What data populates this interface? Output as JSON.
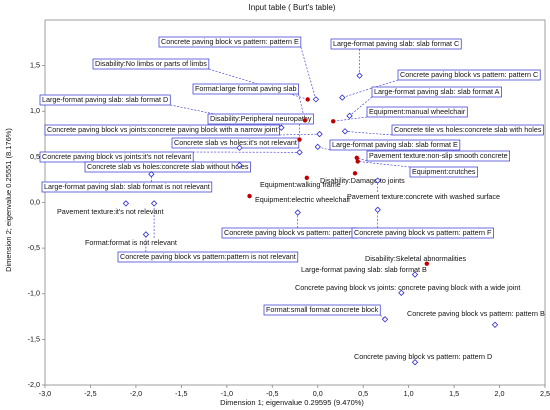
{
  "chart_data": {
    "type": "scatter",
    "title": "Input table ( Burt's table)",
    "x_label": "Dimension 1; eigenvalue 0.29595 (9.470%)",
    "y_label": "Dimension 2; eigenvalue 0.25551 (8.176%)",
    "xlim": [
      -3.0,
      2.5
    ],
    "ylim": [
      -2.0,
      2.0
    ],
    "xticks": [
      {
        "value": -3.0,
        "label": "-3,0"
      },
      {
        "value": -2.5,
        "label": "-2,5"
      },
      {
        "value": -2.0,
        "label": "-2,0"
      },
      {
        "value": -1.5,
        "label": "-1,5"
      },
      {
        "value": -1.0,
        "label": "-1,0"
      },
      {
        "value": -0.5,
        "label": "-0,5"
      },
      {
        "value": 0.0,
        "label": "0,0"
      },
      {
        "value": 0.5,
        "label": "0,5"
      },
      {
        "value": 1.0,
        "label": "1,0"
      },
      {
        "value": 1.5,
        "label": "1,5"
      },
      {
        "value": 2.0,
        "label": "2,0"
      },
      {
        "value": 2.5,
        "label": "2,5"
      }
    ],
    "yticks": [
      {
        "value": -2.0,
        "label": "-2,0"
      },
      {
        "value": -1.5,
        "label": "-1,5"
      },
      {
        "value": -1.0,
        "label": "-1,0"
      },
      {
        "value": -0.5,
        "label": "-0,5"
      },
      {
        "value": 0.0,
        "label": "0,0"
      },
      {
        "value": 0.5,
        "label": "0,5"
      },
      {
        "value": 1.0,
        "label": "1,0"
      },
      {
        "value": 1.5,
        "label": "1,5"
      }
    ],
    "series": [
      {
        "color": "#3030d0",
        "marker": "diamond",
        "labels": [
          "Concrete paving block vs pattern: pattern E",
          "Large-format paving slab: slab format C",
          "Concrete paving block vs pattern: pattern C",
          "Large-format paving slab: slab format A",
          "Large-format paving slab: slab format D",
          "Concrete paving block vs joints:concrete paving block with a narrow joint",
          "Concrete tile vs holes:concrete slab with holes",
          "Concrete slab vs holes:it's not relevant",
          "Large-format paving slab: slab format E",
          "Concrete paving block vs joints:it's not relevant",
          "Concrete slab vs holes:concrete slab without holes",
          "Large-format paving slab: slab format is not relevant",
          "Pavement texture:concrete with washed surface",
          "Pavement texture:it's not relevant",
          "Concrete paving block vs pattern: pattern",
          "Concrete paving block vs pattern: pattern F",
          "Format:format is not relevant",
          "Concrete paving block vs pattern:pattern is not relevant",
          "Large-format paving slab: slab format B",
          "Concrete paving block vs joints: concrete paving block with a wide joint",
          "Format:small format concrete block",
          "Concrete paving block vs pattern: pattern B",
          "Concrete paving block vs pattern: pattern D"
        ],
        "boxed": [
          true,
          true,
          true,
          true,
          true,
          true,
          true,
          true,
          true,
          true,
          true,
          true,
          false,
          false,
          true,
          true,
          false,
          true,
          false,
          false,
          true,
          false,
          false
        ],
        "x": [
          -0.02,
          0.46,
          0.27,
          0.35,
          -0.4,
          0.02,
          0.3,
          -0.86,
          0.0,
          -0.2,
          -0.86,
          -1.83,
          0.66,
          -2.11,
          -0.22,
          0.66,
          -1.8,
          -1.89,
          1.07,
          0.92,
          0.74,
          1.95,
          1.07
        ],
        "y": [
          1.13,
          1.39,
          1.15,
          0.95,
          0.82,
          0.75,
          0.78,
          0.6,
          0.61,
          0.55,
          0.41,
          0.31,
          0.24,
          -0.01,
          -0.11,
          -0.08,
          -0.01,
          -0.35,
          -0.79,
          -0.99,
          -1.28,
          -1.34,
          -1.75
        ]
      },
      {
        "color": "#c00000",
        "marker": "dot",
        "labels": [
          "Disability:No limbs or parts of limbs",
          "Format:large format paving slab",
          "Equipment:manual wheelchair",
          "Disability:Peripheral neuropathy",
          "Pavement texture:non-slip smooth concrete",
          "Equipment:crutches",
          "Disability:Damage to joints",
          "Equipment:walking frame",
          "Equipment:electric wheelchair",
          "Disability:Skeletal abnormalities"
        ],
        "boxed": [
          true,
          true,
          true,
          true,
          true,
          true,
          false,
          false,
          false,
          false
        ],
        "x": [
          -0.11,
          -0.14,
          0.17,
          -0.2,
          0.43,
          0.44,
          0.41,
          -0.12,
          -0.75,
          1.2
        ],
        "y": [
          1.13,
          0.9,
          0.89,
          0.69,
          0.49,
          0.45,
          0.32,
          0.27,
          0.07,
          -0.67
        ]
      }
    ]
  }
}
